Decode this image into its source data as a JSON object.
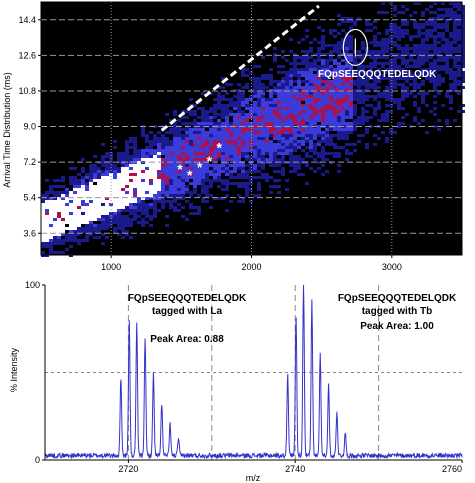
{
  "colors": {
    "heatmap_bg": "#000000",
    "cloud_low": "#1a1a8c",
    "cloud_mid": "#3b3bd9",
    "cloud_high": "#b0104a",
    "cloud_peak": "#ffffff",
    "spectrum_line": "#3333cc",
    "grid_top": "#9a9a9a",
    "grid_bottom": "#888888",
    "trendline": "#ffffff",
    "annotation_text": "#ffffff"
  },
  "chart_data": [
    {
      "type": "heatmap",
      "title": "",
      "ylabel": "Arrival Time Distribution (ms)",
      "xlabel": "",
      "xlim": [
        500,
        3500
      ],
      "ylim": [
        2.5,
        15.3
      ],
      "x_ticks": [
        1000,
        2000,
        3000
      ],
      "x_tick_labels": [
        "1000",
        "2000",
        "3000"
      ],
      "y_ticks": [
        3.6,
        5.4,
        7.2,
        9.0,
        10.8,
        12.6,
        14.4
      ],
      "y_tick_labels": [
        "3.6",
        "5.4",
        "7.2",
        "9.0",
        "10.8",
        "12.6",
        "14.4"
      ],
      "grid": "dotted vertical and dashed horizontal lines",
      "trendline": {
        "x": [
          1360,
          2480
        ],
        "y": [
          8.8,
          15.1
        ]
      },
      "highlight": {
        "label": "FQpSEEQQQTEDELQDK",
        "x": 2740,
        "y": 13.0
      },
      "star_markers": {
        "symbol": "*",
        "points": [
          {
            "x": 1490,
            "y": 6.9
          },
          {
            "x": 1560,
            "y": 6.6
          },
          {
            "x": 1630,
            "y": 7.0
          },
          {
            "x": 1700,
            "y": 7.3
          },
          {
            "x": 1770,
            "y": 8.0
          }
        ]
      }
    },
    {
      "type": "line",
      "title": "",
      "xlabel": "m/z",
      "ylabel": "% Intensity",
      "xlim": [
        2710,
        2760
      ],
      "ylim": [
        0,
        100
      ],
      "x_ticks": [
        2720,
        2740,
        2760
      ],
      "x_tick_labels": [
        "2720",
        "2740",
        "2760"
      ],
      "y_ticks": [
        0,
        100
      ],
      "y_tick_labels": [
        "0",
        "100"
      ],
      "grid": "dashed vertical lines every 10 m/z, dashed horizontal at 50%",
      "grid_x": [
        2710,
        2720,
        2730,
        2740,
        2750
      ],
      "grid_y": 50,
      "baseline_noise": 3,
      "series": [
        {
          "peaks": [
            {
              "mz": 2719.1,
              "intensity": 45
            },
            {
              "mz": 2720.1,
              "intensity": 77
            },
            {
              "mz": 2721.0,
              "intensity": 75
            },
            {
              "mz": 2722.0,
              "intensity": 68
            },
            {
              "mz": 2723.0,
              "intensity": 47
            },
            {
              "mz": 2724.0,
              "intensity": 30
            },
            {
              "mz": 2725.0,
              "intensity": 18
            },
            {
              "mz": 2726.0,
              "intensity": 10
            },
            {
              "mz": 2739.1,
              "intensity": 47
            },
            {
              "mz": 2740.1,
              "intensity": 80
            },
            {
              "mz": 2741.0,
              "intensity": 100
            },
            {
              "mz": 2742.0,
              "intensity": 88
            },
            {
              "mz": 2743.0,
              "intensity": 58
            },
            {
              "mz": 2744.0,
              "intensity": 40
            },
            {
              "mz": 2745.0,
              "intensity": 25
            },
            {
              "mz": 2746.0,
              "intensity": 13
            }
          ]
        }
      ],
      "annotations": [
        {
          "lines": [
            "FQpSEEQQQTEDELQDK",
            "tagged with La"
          ],
          "peak_area_label": "Peak Area: 0.88"
        },
        {
          "lines": [
            "FQpSEEQQQTEDELQDK",
            "tagged with Tb"
          ],
          "peak_area_label": "Peak Area: 1.00"
        }
      ]
    }
  ]
}
